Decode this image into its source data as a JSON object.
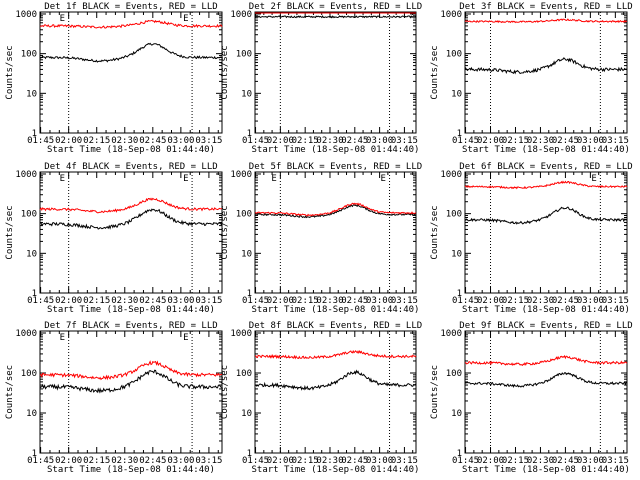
{
  "figure": {
    "background": "#ffffff",
    "axis_color": "#000000",
    "series_colors": {
      "events": "#000000",
      "lld": "#ff0000"
    }
  },
  "chart_data": [
    {
      "type": "line",
      "title": "Det 1f BLACK = Events, RED = LLD",
      "xlabel": "Start Time (18-Sep-08 01:44:40)",
      "ylabel": "Counts/sec",
      "x_ticks": [
        "01:45",
        "02:00",
        "02:15",
        "02:30",
        "02:45",
        "03:00",
        "03:15"
      ],
      "y_ticks": [
        "1",
        "10",
        "100",
        "1000"
      ],
      "y_scale": "log",
      "ylim": [
        1,
        1000
      ],
      "markers": [
        {
          "time": "02:00",
          "label": "E"
        },
        {
          "time": "03:06",
          "label": "E"
        }
      ],
      "series": [
        {
          "color": "#000000",
          "base": 80,
          "bump": 2.2,
          "noise": 0.03
        },
        {
          "color": "#ff0000",
          "base": 500,
          "bump": 1.3,
          "noise": 0.03
        }
      ]
    },
    {
      "type": "line",
      "title": "Det 2f BLACK = Events, RED = LLD",
      "xlabel": "Start Time (18-Sep-08 01:44:40)",
      "ylabel": "Counts/sec",
      "x_ticks": [
        "01:45",
        "02:00",
        "02:15",
        "02:30",
        "02:45",
        "03:00",
        "03:15"
      ],
      "y_ticks": [
        "1",
        "10",
        "100",
        "1000"
      ],
      "y_scale": "log",
      "ylim": [
        1,
        1000
      ],
      "markers": [
        {
          "time": "02:00",
          "label": ""
        },
        {
          "time": "03:06",
          "label": ""
        }
      ],
      "series": [
        {
          "color": "#000000",
          "base": 850,
          "bump": 1.0,
          "noise": 0.02
        },
        {
          "color": "#ff0000",
          "base": 1150,
          "bump": 1.0,
          "noise": 0.02
        }
      ]
    },
    {
      "type": "line",
      "title": "Det 3f BLACK = Events, RED = LLD",
      "xlabel": "Start Time (18-Sep-08 01:44:40)",
      "ylabel": "Counts/sec",
      "x_ticks": [
        "01:45",
        "02:00",
        "02:15",
        "02:30",
        "02:45",
        "03:00",
        "03:15"
      ],
      "y_ticks": [
        "1",
        "10",
        "100",
        "1000"
      ],
      "y_scale": "log",
      "ylim": [
        1,
        1000
      ],
      "markers": [
        {
          "time": "02:00",
          "label": ""
        },
        {
          "time": "03:06",
          "label": ""
        }
      ],
      "series": [
        {
          "color": "#000000",
          "base": 40,
          "bump": 1.8,
          "noise": 0.04
        },
        {
          "color": "#ff0000",
          "base": 650,
          "bump": 1.1,
          "noise": 0.02
        }
      ]
    },
    {
      "type": "line",
      "title": "Det 4f BLACK = Events, RED = LLD",
      "xlabel": "Start Time (18-Sep-08 01:44:40)",
      "ylabel": "Counts/sec",
      "x_ticks": [
        "01:45",
        "02:00",
        "02:15",
        "02:30",
        "02:45",
        "03:00",
        "03:15"
      ],
      "y_ticks": [
        "1",
        "10",
        "100",
        "1000"
      ],
      "y_scale": "log",
      "ylim": [
        1,
        1000
      ],
      "markers": [
        {
          "time": "02:00",
          "label": "E"
        },
        {
          "time": "03:06",
          "label": "E"
        }
      ],
      "series": [
        {
          "color": "#000000",
          "base": 55,
          "bump": 2.3,
          "noise": 0.04
        },
        {
          "color": "#ff0000",
          "base": 130,
          "bump": 1.8,
          "noise": 0.03
        }
      ]
    },
    {
      "type": "line",
      "title": "Det 5f BLACK = Events, RED = LLD",
      "xlabel": "Start Time (18-Sep-08 01:44:40)",
      "ylabel": "Counts/sec",
      "x_ticks": [
        "01:45",
        "02:00",
        "02:15",
        "02:30",
        "02:45",
        "03:00",
        "03:15"
      ],
      "y_ticks": [
        "1",
        "10",
        "100",
        "1000"
      ],
      "y_scale": "log",
      "ylim": [
        1,
        1000
      ],
      "markers": [
        {
          "time": "02:00",
          "label": "E"
        },
        {
          "time": "03:06",
          "label": "E"
        }
      ],
      "series": [
        {
          "color": "#000000",
          "base": 95,
          "bump": 1.7,
          "noise": 0.02
        },
        {
          "color": "#ff0000",
          "base": 105,
          "bump": 1.7,
          "noise": 0.02
        }
      ]
    },
    {
      "type": "line",
      "title": "Det 6f BLACK = Events, RED = LLD",
      "xlabel": "Start Time (18-Sep-08 01:44:40)",
      "ylabel": "Counts/sec",
      "x_ticks": [
        "01:45",
        "02:00",
        "02:15",
        "02:30",
        "02:45",
        "03:00",
        "03:15"
      ],
      "y_ticks": [
        "1",
        "10",
        "100",
        "1000"
      ],
      "y_scale": "log",
      "ylim": [
        1,
        1000
      ],
      "markers": [
        {
          "time": "02:00",
          "label": ""
        },
        {
          "time": "03:06",
          "label": "E"
        }
      ],
      "series": [
        {
          "color": "#000000",
          "base": 70,
          "bump": 2.0,
          "noise": 0.03
        },
        {
          "color": "#ff0000",
          "base": 480,
          "bump": 1.3,
          "noise": 0.02
        }
      ]
    },
    {
      "type": "line",
      "title": "Det 7f BLACK = Events, RED = LLD",
      "xlabel": "Start Time (18-Sep-08 01:44:40)",
      "ylabel": "Counts/sec",
      "x_ticks": [
        "01:45",
        "02:00",
        "02:15",
        "02:30",
        "02:45",
        "03:00",
        "03:15"
      ],
      "y_ticks": [
        "1",
        "10",
        "100",
        "1000"
      ],
      "y_scale": "log",
      "ylim": [
        1,
        1000
      ],
      "markers": [
        {
          "time": "02:00",
          "label": "E"
        },
        {
          "time": "03:06",
          "label": "E"
        }
      ],
      "series": [
        {
          "color": "#000000",
          "base": 45,
          "bump": 2.4,
          "noise": 0.05
        },
        {
          "color": "#ff0000",
          "base": 90,
          "bump": 2.0,
          "noise": 0.04
        }
      ]
    },
    {
      "type": "line",
      "title": "Det 8f BLACK = Events, RED = LLD",
      "xlabel": "Start Time (18-Sep-08 01:44:40)",
      "ylabel": "Counts/sec",
      "x_ticks": [
        "01:45",
        "02:00",
        "02:15",
        "02:30",
        "02:45",
        "03:00",
        "03:15"
      ],
      "y_ticks": [
        "1",
        "10",
        "100",
        "1000"
      ],
      "y_scale": "log",
      "ylim": [
        1,
        1000
      ],
      "markers": [
        {
          "time": "02:00",
          "label": ""
        },
        {
          "time": "03:06",
          "label": ""
        }
      ],
      "series": [
        {
          "color": "#000000",
          "base": 50,
          "bump": 2.1,
          "noise": 0.04
        },
        {
          "color": "#ff0000",
          "base": 260,
          "bump": 1.3,
          "noise": 0.03
        }
      ]
    },
    {
      "type": "line",
      "title": "Det 9f BLACK = Events, RED = LLD",
      "xlabel": "Start Time (18-Sep-08 01:44:40)",
      "ylabel": "Counts/sec",
      "x_ticks": [
        "01:45",
        "02:00",
        "02:15",
        "02:30",
        "02:45",
        "03:00",
        "03:15"
      ],
      "y_ticks": [
        "1",
        "10",
        "100",
        "1000"
      ],
      "y_scale": "log",
      "ylim": [
        1,
        1000
      ],
      "markers": [
        {
          "time": "02:00",
          "label": ""
        },
        {
          "time": "03:06",
          "label": ""
        }
      ],
      "series": [
        {
          "color": "#000000",
          "base": 55,
          "bump": 1.8,
          "noise": 0.03
        },
        {
          "color": "#ff0000",
          "base": 180,
          "bump": 1.4,
          "noise": 0.03
        }
      ]
    }
  ]
}
